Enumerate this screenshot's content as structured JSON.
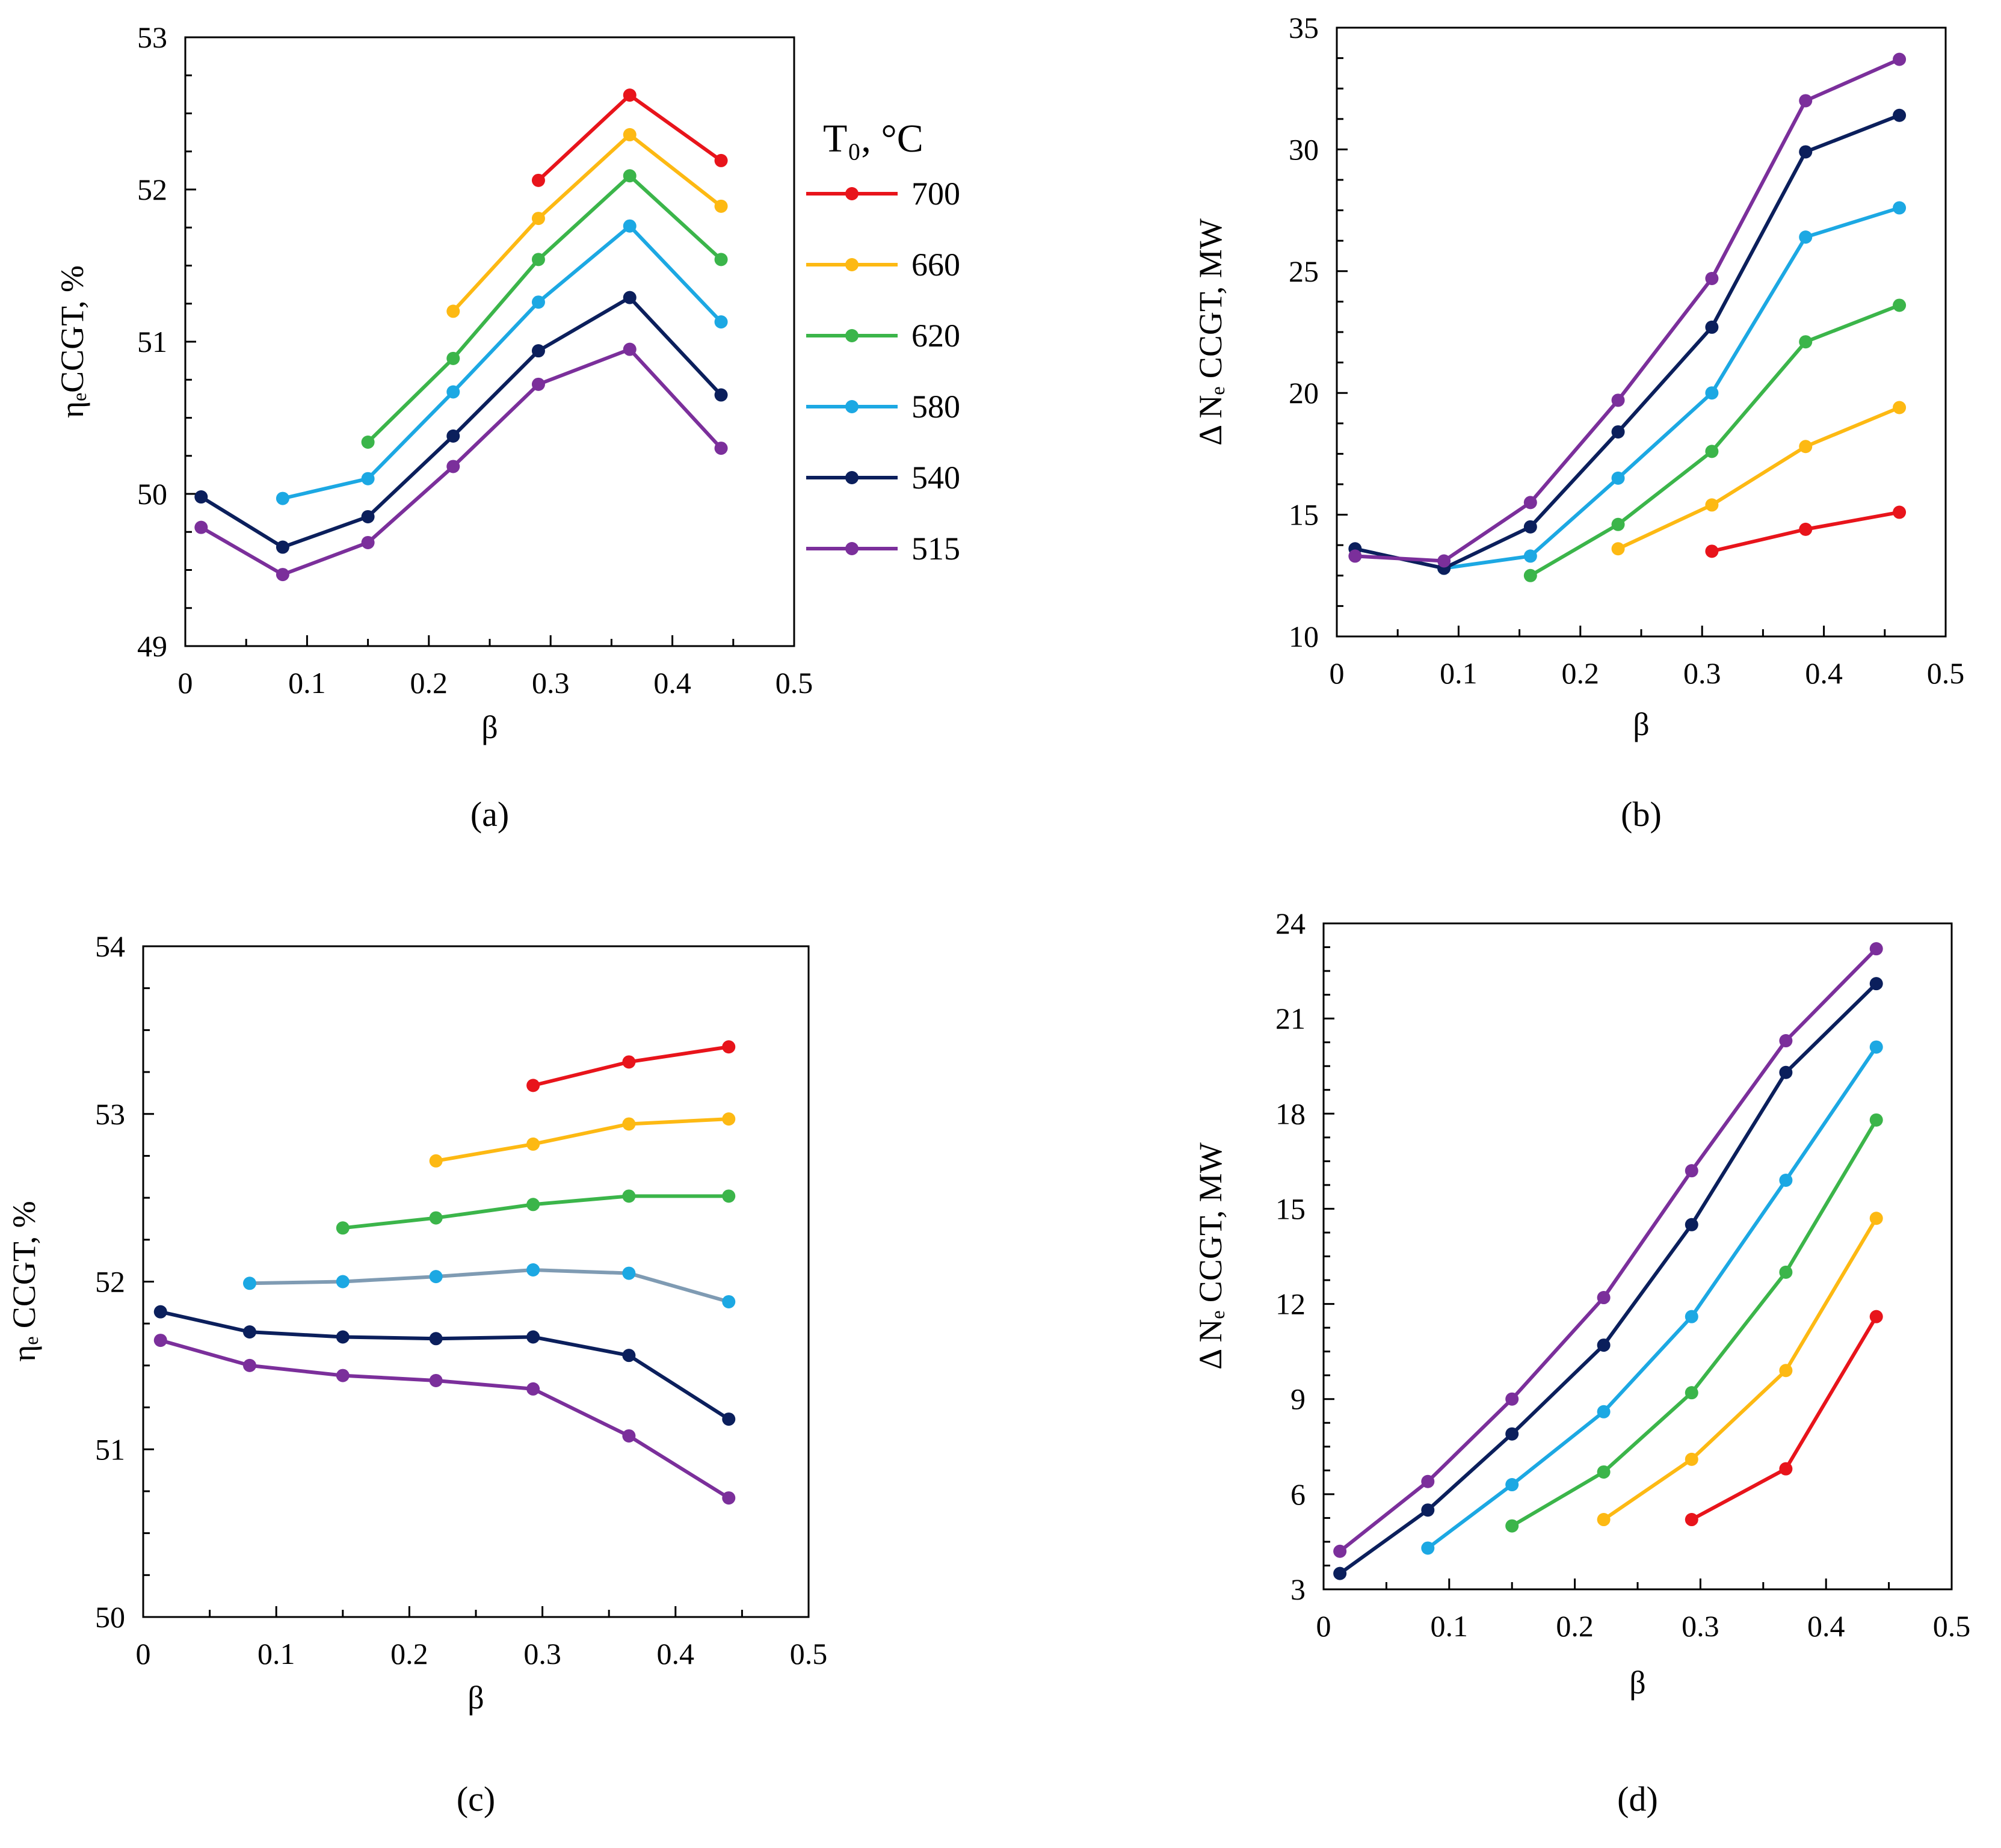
{
  "legend": {
    "title": "T₀, °C",
    "entries": [
      {
        "label": "700",
        "color": "#e8141b"
      },
      {
        "label": "660",
        "color": "#fdb913"
      },
      {
        "label": "620",
        "color": "#3bb54a"
      },
      {
        "label": "580",
        "color": "#1ca8e3"
      },
      {
        "label": "540",
        "color": "#0b1f5c"
      },
      {
        "label": "515",
        "color": "#7b2f9b"
      }
    ]
  },
  "chart_data": [
    {
      "type": "line",
      "panel_label": "(a)",
      "xlabel": "β",
      "ylabel": "ηₑCCGT, %",
      "xlim": [
        0,
        0.5
      ],
      "ylim": [
        49,
        53
      ],
      "xticks": [
        "0",
        "0.1",
        "0.2",
        "0.3",
        "0.4",
        "0.5"
      ],
      "yticks": [
        "49",
        "50",
        "51",
        "52",
        "53"
      ],
      "series": [
        {
          "name": "700",
          "x": [
            0.29,
            0.365,
            0.44
          ],
          "y": [
            52.06,
            52.62,
            52.19
          ]
        },
        {
          "name": "660",
          "x": [
            0.22,
            0.29,
            0.365,
            0.44
          ],
          "y": [
            51.2,
            51.81,
            52.36,
            51.89
          ]
        },
        {
          "name": "620",
          "x": [
            0.15,
            0.22,
            0.29,
            0.365,
            0.44
          ],
          "y": [
            50.34,
            50.89,
            51.54,
            52.09,
            51.54
          ]
        },
        {
          "name": "580",
          "x": [
            0.08,
            0.15,
            0.22,
            0.29,
            0.365,
            0.44
          ],
          "y": [
            49.97,
            50.1,
            50.67,
            51.26,
            51.76,
            51.13
          ]
        },
        {
          "name": "540",
          "x": [
            0.013,
            0.08,
            0.15,
            0.22,
            0.29,
            0.365,
            0.44
          ],
          "y": [
            49.98,
            49.65,
            49.85,
            50.38,
            50.94,
            51.29,
            50.65
          ]
        },
        {
          "name": "515",
          "x": [
            0.013,
            0.08,
            0.15,
            0.22,
            0.29,
            0.365,
            0.44
          ],
          "y": [
            49.78,
            49.47,
            49.68,
            50.18,
            50.72,
            50.95,
            50.3
          ]
        }
      ]
    },
    {
      "type": "line",
      "panel_label": "(b)",
      "xlabel": "β",
      "ylabel": "Δ Nₑ CCGT, MW",
      "xlim": [
        0,
        0.5
      ],
      "ylim": [
        10,
        35
      ],
      "xticks": [
        "0",
        "0.1",
        "0.2",
        "0.3",
        "0.4",
        "0.5"
      ],
      "yticks": [
        "10",
        "15",
        "20",
        "25",
        "30",
        "35"
      ],
      "series": [
        {
          "name": "700",
          "x": [
            0.308,
            0.385,
            0.462
          ],
          "y": [
            13.5,
            14.4,
            15.1
          ]
        },
        {
          "name": "660",
          "x": [
            0.231,
            0.308,
            0.385,
            0.462
          ],
          "y": [
            13.6,
            15.4,
            17.8,
            19.4
          ]
        },
        {
          "name": "620",
          "x": [
            0.159,
            0.231,
            0.308,
            0.385,
            0.462
          ],
          "y": [
            12.5,
            14.6,
            17.6,
            22.1,
            23.6
          ]
        },
        {
          "name": "580",
          "x": [
            0.088,
            0.159,
            0.231,
            0.308,
            0.385,
            0.462
          ],
          "y": [
            12.8,
            13.3,
            16.5,
            20.0,
            26.4,
            27.6
          ]
        },
        {
          "name": "540",
          "x": [
            0.015,
            0.088,
            0.159,
            0.231,
            0.308,
            0.385,
            0.462
          ],
          "y": [
            13.6,
            12.8,
            14.5,
            18.4,
            22.7,
            29.9,
            31.4
          ]
        },
        {
          "name": "515",
          "x": [
            0.015,
            0.088,
            0.159,
            0.231,
            0.308,
            0.385,
            0.462
          ],
          "y": [
            13.3,
            13.1,
            15.5,
            19.7,
            24.7,
            32.0,
            33.7
          ]
        }
      ]
    },
    {
      "type": "line",
      "panel_label": "(c)",
      "xlabel": "β",
      "ylabel": "ηₑ CCGT, %",
      "xlim": [
        0,
        0.5
      ],
      "ylim": [
        50,
        54
      ],
      "xticks": [
        "0",
        "0.1",
        "0.2",
        "0.3",
        "0.4",
        "0.5"
      ],
      "yticks": [
        "50",
        "51",
        "52",
        "53",
        "54"
      ],
      "series": [
        {
          "name": "700",
          "x": [
            0.293,
            0.365,
            0.44
          ],
          "y": [
            53.17,
            53.31,
            53.4
          ]
        },
        {
          "name": "660",
          "x": [
            0.22,
            0.293,
            0.365,
            0.44
          ],
          "y": [
            52.72,
            52.82,
            52.94,
            52.97
          ]
        },
        {
          "name": "620",
          "x": [
            0.15,
            0.22,
            0.293,
            0.365,
            0.44
          ],
          "y": [
            52.32,
            52.38,
            52.46,
            52.51,
            52.51
          ]
        },
        {
          "name": "580",
          "x": [
            0.08,
            0.15,
            0.22,
            0.293,
            0.365,
            0.44
          ],
          "y": [
            51.99,
            52.0,
            52.03,
            52.07,
            52.05,
            51.88
          ],
          "line_color": "#7f9bb3"
        },
        {
          "name": "540",
          "x": [
            0.013,
            0.08,
            0.15,
            0.22,
            0.293,
            0.365,
            0.44
          ],
          "y": [
            51.82,
            51.7,
            51.67,
            51.66,
            51.67,
            51.56,
            51.18
          ]
        },
        {
          "name": "515",
          "x": [
            0.013,
            0.08,
            0.15,
            0.22,
            0.293,
            0.365,
            0.44
          ],
          "y": [
            51.65,
            51.5,
            51.44,
            51.41,
            51.36,
            51.08,
            50.71
          ]
        }
      ]
    },
    {
      "type": "line",
      "panel_label": "(d)",
      "xlabel": "β",
      "ylabel": "Δ Nₑ CCGT, MW",
      "xlim": [
        0,
        0.5
      ],
      "ylim": [
        3,
        24
      ],
      "xticks": [
        "0",
        "0.1",
        "0.2",
        "0.3",
        "0.4",
        "0.5"
      ],
      "yticks": [
        "3",
        "6",
        "9",
        "12",
        "15",
        "18",
        "21",
        "24"
      ],
      "series": [
        {
          "name": "700",
          "x": [
            0.293,
            0.368,
            0.44
          ],
          "y": [
            5.2,
            6.8,
            11.6
          ]
        },
        {
          "name": "660",
          "x": [
            0.223,
            0.293,
            0.368,
            0.44
          ],
          "y": [
            5.2,
            7.1,
            9.9,
            14.7
          ]
        },
        {
          "name": "620",
          "x": [
            0.15,
            0.223,
            0.293,
            0.368,
            0.44
          ],
          "y": [
            5.0,
            6.7,
            9.2,
            13.0,
            17.8
          ]
        },
        {
          "name": "580",
          "x": [
            0.083,
            0.15,
            0.223,
            0.293,
            0.368,
            0.44
          ],
          "y": [
            4.3,
            6.3,
            8.6,
            11.6,
            15.9,
            20.1
          ]
        },
        {
          "name": "540",
          "x": [
            0.013,
            0.083,
            0.15,
            0.223,
            0.293,
            0.368,
            0.44
          ],
          "y": [
            3.5,
            5.5,
            7.9,
            10.7,
            14.5,
            19.3,
            22.1
          ]
        },
        {
          "name": "515",
          "x": [
            0.013,
            0.083,
            0.15,
            0.223,
            0.293,
            0.368,
            0.44
          ],
          "y": [
            4.2,
            6.4,
            9.0,
            12.2,
            16.2,
            20.3,
            23.2
          ]
        }
      ]
    }
  ]
}
